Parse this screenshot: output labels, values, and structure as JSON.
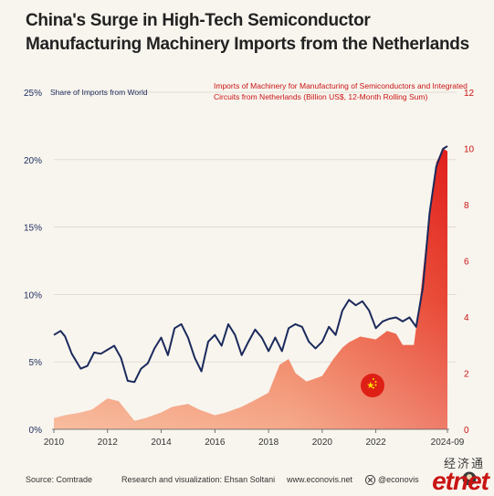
{
  "title": "China's Surge in High-Tech Semiconductor Manufacturing Machinery Imports from the Netherlands",
  "footer": {
    "source": "Source: Comtrade",
    "credit": "Research and visualization: Ehsan Soltani",
    "website": "www.econovis.net",
    "handle": "@econovis"
  },
  "watermark": {
    "cn": "经济通",
    "en": "etnet"
  },
  "colors": {
    "share_line": "#1b2a5c",
    "imports_area": "#e0201c",
    "imports_area_light": "#f6b08e",
    "background": "#f8f5ee"
  },
  "icons": [
    "china-flag-icon",
    "x-logo-icon",
    "avatar-icon"
  ],
  "chart_data": {
    "type": "line",
    "x_ticks": [
      "2010",
      "2012",
      "2014",
      "2016",
      "2018",
      "2020",
      "2022",
      "2024-09"
    ],
    "x_range": [
      "2010-01",
      "2024-09"
    ],
    "left_axis": {
      "label": "Share of Imports from World",
      "ticks": [
        "0%",
        "5%",
        "10%",
        "15%",
        "20%",
        "25%"
      ],
      "ylim": [
        0,
        25
      ]
    },
    "right_axis": {
      "label": "Imports of Machinery for Manufacturing of Semiconductors and Integrated Circuits from Netherlands (Billion US$, 12-Month Rolling Sum)",
      "ticks": [
        "0",
        "2",
        "4",
        "6",
        "8",
        "10",
        "12"
      ],
      "ylim": [
        0,
        12
      ]
    },
    "series": [
      {
        "name": "Share of Imports from World",
        "axis": "left",
        "style": "line",
        "x": [
          "2010-01",
          "2010-04",
          "2010-06",
          "2010-09",
          "2011-01",
          "2011-04",
          "2011-07",
          "2011-10",
          "2012-01",
          "2012-04",
          "2012-07",
          "2012-10",
          "2013-01",
          "2013-04",
          "2013-07",
          "2013-10",
          "2014-01",
          "2014-04",
          "2014-07",
          "2014-10",
          "2015-01",
          "2015-04",
          "2015-07",
          "2015-10",
          "2016-01",
          "2016-04",
          "2016-07",
          "2016-10",
          "2017-01",
          "2017-04",
          "2017-07",
          "2017-10",
          "2018-01",
          "2018-04",
          "2018-07",
          "2018-10",
          "2019-01",
          "2019-04",
          "2019-07",
          "2019-10",
          "2020-01",
          "2020-04",
          "2020-07",
          "2020-10",
          "2021-01",
          "2021-04",
          "2021-07",
          "2021-10",
          "2022-01",
          "2022-04",
          "2022-07",
          "2022-10",
          "2023-01",
          "2023-04",
          "2023-07",
          "2023-10",
          "2024-01",
          "2024-04",
          "2024-07",
          "2024-09"
        ],
        "values": [
          7.0,
          7.3,
          6.9,
          5.6,
          4.5,
          4.7,
          5.7,
          5.6,
          5.9,
          6.2,
          5.3,
          3.6,
          3.5,
          4.5,
          4.9,
          6.0,
          6.8,
          5.5,
          7.5,
          7.8,
          6.8,
          5.3,
          4.3,
          6.5,
          7.0,
          6.2,
          7.8,
          7.0,
          5.5,
          6.5,
          7.4,
          6.8,
          5.8,
          6.8,
          5.8,
          7.5,
          7.8,
          7.6,
          6.5,
          6.0,
          6.5,
          7.6,
          7.0,
          8.8,
          9.6,
          9.2,
          9.5,
          8.8,
          7.5,
          8.0,
          8.2,
          8.3,
          8.0,
          8.3,
          7.6,
          10.5,
          16.0,
          19.5,
          20.8,
          21.0
        ]
      },
      {
        "name": "Imports of Machinery for Manufacturing of Semiconductors and Integrated Circuits from Netherlands",
        "axis": "right",
        "style": "area",
        "x": [
          "2010-01",
          "2010-06",
          "2011-01",
          "2011-06",
          "2012-01",
          "2012-06",
          "2012-09",
          "2013-01",
          "2013-06",
          "2014-01",
          "2014-06",
          "2015-01",
          "2015-06",
          "2016-01",
          "2016-06",
          "2017-01",
          "2017-06",
          "2018-01",
          "2018-06",
          "2018-10",
          "2019-01",
          "2019-06",
          "2020-01",
          "2020-06",
          "2020-10",
          "2021-01",
          "2021-06",
          "2022-01",
          "2022-06",
          "2022-10",
          "2023-01",
          "2023-06",
          "2023-09",
          "2024-01",
          "2024-04",
          "2024-07",
          "2024-09"
        ],
        "values": [
          0.4,
          0.5,
          0.6,
          0.7,
          1.1,
          1.0,
          0.7,
          0.3,
          0.4,
          0.6,
          0.8,
          0.9,
          0.7,
          0.5,
          0.6,
          0.8,
          1.0,
          1.3,
          2.3,
          2.5,
          2.0,
          1.7,
          1.9,
          2.5,
          2.9,
          3.1,
          3.3,
          3.2,
          3.5,
          3.4,
          3.0,
          3.0,
          4.8,
          7.8,
          9.5,
          10.0,
          9.9
        ]
      }
    ],
    "grid": true,
    "legend": "axis labels at top-left and top-right"
  }
}
